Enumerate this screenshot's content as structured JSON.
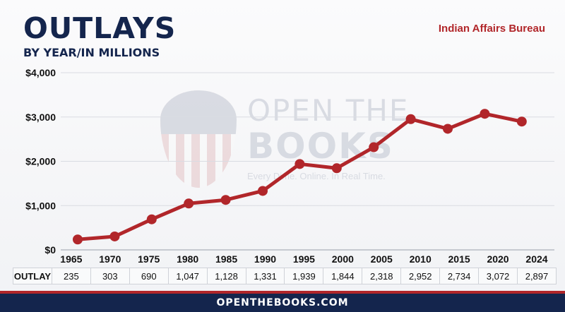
{
  "header": {
    "title": "OUTLAYS",
    "subtitle": "BY YEAR/IN MILLIONS",
    "agency": "Indian Affairs Bureau"
  },
  "watermark": {
    "line1": "OPEN THE",
    "line2": "BOOKS",
    "tagline": "Every Dime. Online. In Real Time."
  },
  "table": {
    "row_label": "OUTLAY"
  },
  "footer": {
    "url": "OPENTHEBOOKS.COM"
  },
  "colors": {
    "navy": "#14254d",
    "line": "#b1262a"
  },
  "chart_data": {
    "type": "line",
    "x": [
      "1965",
      "1970",
      "1975",
      "1980",
      "1985",
      "1990",
      "1995",
      "2000",
      "2005",
      "2010",
      "2015",
      "2020",
      "2024"
    ],
    "series": [
      {
        "values": [
          235,
          303,
          690,
          1047,
          1128,
          1331,
          1939,
          1844,
          2318,
          2952,
          2734,
          3072,
          2897
        ]
      }
    ],
    "value_labels": [
      "235",
      "303",
      "690",
      "1,047",
      "1,128",
      "1,331",
      "1,939",
      "1,844",
      "2,318",
      "2,952",
      "2,734",
      "3,072",
      "2,897"
    ],
    "yticks": [
      "$0",
      "$1,000",
      "$2,000",
      "$3,000",
      "$4,000"
    ],
    "ylim": [
      0,
      4000
    ],
    "grid": true,
    "legend": "none"
  }
}
